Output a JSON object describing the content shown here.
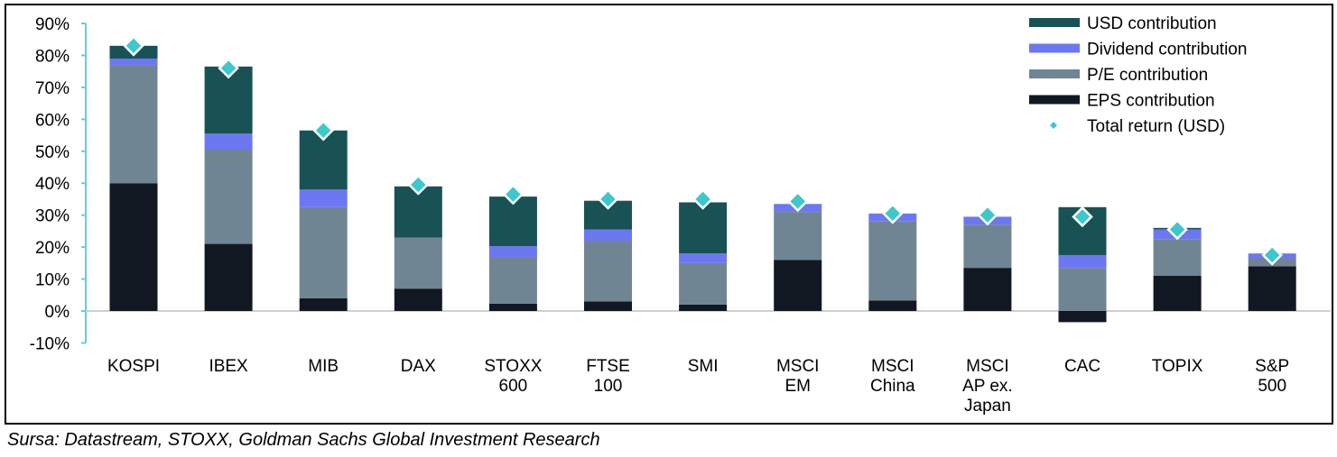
{
  "chart_data": {
    "type": "bar",
    "stacked": true,
    "categories": [
      [
        "KOSPI"
      ],
      [
        "IBEX"
      ],
      [
        "MIB"
      ],
      [
        "DAX"
      ],
      [
        "STOXX",
        "600"
      ],
      [
        "FTSE",
        "100"
      ],
      [
        "SMI"
      ],
      [
        "MSCI",
        "EM"
      ],
      [
        "MSCI",
        "China"
      ],
      [
        "MSCI",
        "AP ex.",
        "Japan"
      ],
      [
        "CAC"
      ],
      [
        "TOPIX"
      ],
      [
        "S&P",
        "500"
      ]
    ],
    "series": [
      {
        "name": "EPS contribution",
        "color": "#111822",
        "values": [
          40,
          21,
          4,
          7,
          2.3,
          3,
          2,
          16,
          3.3,
          13.5,
          -3.5,
          11,
          14
        ]
      },
      {
        "name": "P/E contribution",
        "color": "#6f8593",
        "values": [
          37,
          29.5,
          28.5,
          16,
          14.5,
          19,
          13,
          15,
          24.7,
          13.5,
          13.5,
          11.5,
          2.5
        ]
      },
      {
        "name": "Dividend contribution",
        "color": "#6c77f2",
        "values": [
          2,
          5,
          5.5,
          0,
          3.5,
          3.5,
          3,
          2.5,
          2.5,
          2.5,
          4,
          3,
          1.5
        ]
      },
      {
        "name": "USD contribution",
        "color": "#185255",
        "values": [
          4,
          21,
          18.5,
          16,
          15.5,
          9,
          16,
          0,
          0,
          0,
          15,
          0.5,
          0
        ]
      }
    ],
    "total_return": {
      "name": "Total return (USD)",
      "color": "#3cc8cc",
      "values": [
        83,
        76,
        56.5,
        39.5,
        36.5,
        35,
        35,
        34.3,
        30.5,
        30,
        29.5,
        25.5,
        17.5
      ]
    },
    "legend_order": [
      "USD contribution",
      "Dividend contribution",
      "P/E contribution",
      "EPS contribution",
      "Total return (USD)"
    ],
    "legend_placement": "top-right",
    "yticks": [
      "90%",
      "80%",
      "70%",
      "60%",
      "50%",
      "40%",
      "30%",
      "20%",
      "10%",
      "0%",
      "-10%"
    ],
    "ylim": [
      -10,
      90
    ],
    "grid": false,
    "axis_color": "#5fd3d8"
  },
  "source": "Sursa: Datastream, STOXX, Goldman Sachs Global Investment Research"
}
